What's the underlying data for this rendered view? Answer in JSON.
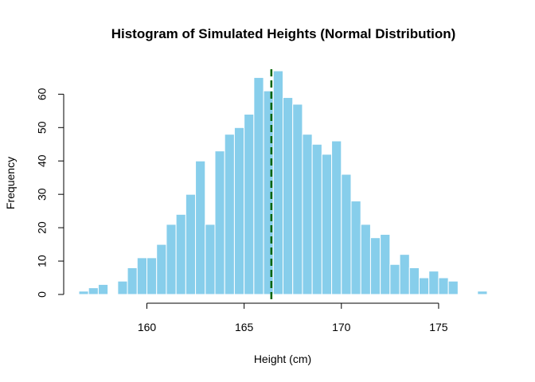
{
  "chart_data": {
    "type": "bar",
    "title": "Histogram of Simulated Heights (Normal Distribution)",
    "xlabel": "Height (cm)",
    "ylabel": "Frequency",
    "xlim": [
      156.5,
      177.5
    ],
    "ylim": [
      0,
      67
    ],
    "x_ticks": [
      160,
      165,
      170,
      175
    ],
    "y_ticks": [
      0,
      10,
      20,
      30,
      40,
      50,
      60
    ],
    "bin_width": 0.5,
    "bins": [
      {
        "x0": 156.5,
        "x1": 157.0,
        "count": 1
      },
      {
        "x0": 157.0,
        "x1": 157.5,
        "count": 2
      },
      {
        "x0": 157.5,
        "x1": 158.0,
        "count": 3
      },
      {
        "x0": 158.5,
        "x1": 159.0,
        "count": 4
      },
      {
        "x0": 159.0,
        "x1": 159.5,
        "count": 8
      },
      {
        "x0": 159.5,
        "x1": 160.0,
        "count": 11
      },
      {
        "x0": 160.0,
        "x1": 160.5,
        "count": 11
      },
      {
        "x0": 160.5,
        "x1": 161.0,
        "count": 15
      },
      {
        "x0": 161.0,
        "x1": 161.5,
        "count": 21
      },
      {
        "x0": 161.5,
        "x1": 162.0,
        "count": 24
      },
      {
        "x0": 162.0,
        "x1": 162.5,
        "count": 30
      },
      {
        "x0": 162.5,
        "x1": 163.0,
        "count": 40
      },
      {
        "x0": 163.0,
        "x1": 163.5,
        "count": 21
      },
      {
        "x0": 163.5,
        "x1": 164.0,
        "count": 43
      },
      {
        "x0": 164.0,
        "x1": 164.5,
        "count": 48
      },
      {
        "x0": 164.5,
        "x1": 165.0,
        "count": 50
      },
      {
        "x0": 165.0,
        "x1": 165.5,
        "count": 54
      },
      {
        "x0": 165.5,
        "x1": 166.0,
        "count": 65
      },
      {
        "x0": 166.0,
        "x1": 166.5,
        "count": 61
      },
      {
        "x0": 166.5,
        "x1": 167.0,
        "count": 67
      },
      {
        "x0": 167.0,
        "x1": 167.5,
        "count": 59
      },
      {
        "x0": 167.5,
        "x1": 168.0,
        "count": 57
      },
      {
        "x0": 168.0,
        "x1": 168.5,
        "count": 48
      },
      {
        "x0": 168.5,
        "x1": 169.0,
        "count": 45
      },
      {
        "x0": 169.0,
        "x1": 169.5,
        "count": 42
      },
      {
        "x0": 169.5,
        "x1": 170.0,
        "count": 46
      },
      {
        "x0": 170.0,
        "x1": 170.5,
        "count": 36
      },
      {
        "x0": 170.5,
        "x1": 171.0,
        "count": 28
      },
      {
        "x0": 171.0,
        "x1": 171.5,
        "count": 21
      },
      {
        "x0": 171.5,
        "x1": 172.0,
        "count": 17
      },
      {
        "x0": 172.0,
        "x1": 172.5,
        "count": 18
      },
      {
        "x0": 172.5,
        "x1": 173.0,
        "count": 9
      },
      {
        "x0": 173.0,
        "x1": 173.5,
        "count": 12
      },
      {
        "x0": 173.5,
        "x1": 174.0,
        "count": 8
      },
      {
        "x0": 174.0,
        "x1": 174.5,
        "count": 5
      },
      {
        "x0": 174.5,
        "x1": 175.0,
        "count": 7
      },
      {
        "x0": 175.0,
        "x1": 175.5,
        "count": 5
      },
      {
        "x0": 175.5,
        "x1": 176.0,
        "count": 4
      },
      {
        "x0": 177.0,
        "x1": 177.5,
        "count": 1
      }
    ],
    "mean_line": {
      "x": 166.4,
      "style": "dashed"
    },
    "grid": false,
    "colors": {
      "bar_fill": "#87CEEB",
      "bar_border": "#FFFFFF",
      "mean_line": "#006400",
      "axis": "#000000"
    }
  }
}
